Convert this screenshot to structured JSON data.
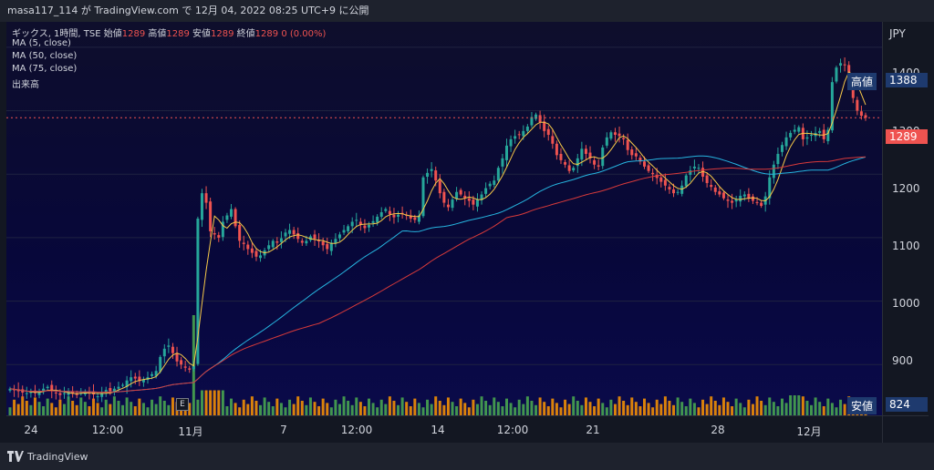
{
  "header": {
    "text": "masa117_114 が TradingView.com で 12月 04, 2022 08:25 UTC+9 に公開"
  },
  "legend": {
    "line1_prefix": "ギックス, 1時間, TSE",
    "o_label": "始値",
    "o_val": "1289",
    "h_label": "高値",
    "h_val": "1289",
    "l_label": "安値",
    "l_val": "1289",
    "c_label": "終値",
    "c_val": "1289",
    "chg": "0 (0.00%)",
    "ma5": "MA (5, close)",
    "ma50": "MA (50, close)",
    "ma75": "MA (75, close)",
    "vol": "出来高"
  },
  "axis": {
    "currency": "JPY",
    "yticks": [
      "1400",
      "1300",
      "1200",
      "1100",
      "1000",
      "900"
    ],
    "xticks": [
      "24",
      "12:00",
      "11月",
      "7",
      "12:00",
      "14",
      "12:00",
      "21",
      "28",
      "12月"
    ]
  },
  "tags": {
    "high_label": "高値",
    "high_val": "1388",
    "last_val": "1289",
    "low_label": "安値",
    "low_val": "824"
  },
  "footer": {
    "brand": "TradingView"
  },
  "marker": "E",
  "colors": {
    "up": "#26a69a",
    "down": "#ef5350",
    "ma5": "#f7c948",
    "ma50": "#26b5e0",
    "ma75": "#d83a3a",
    "bg": "#0b0b2e"
  },
  "chart_data": {
    "type": "line",
    "title": "",
    "ylim": [
      820,
      1440
    ],
    "closes": [
      862,
      860,
      858,
      856,
      855,
      857,
      855,
      858,
      862,
      865,
      858,
      855,
      852,
      855,
      858,
      854,
      852,
      855,
      858,
      856,
      853,
      850,
      855,
      860,
      858,
      862,
      865,
      868,
      875,
      880,
      878,
      874,
      876,
      880,
      885,
      890,
      912,
      925,
      930,
      918,
      905,
      900,
      895,
      892,
      898,
      1130,
      1170,
      1155,
      1110,
      1105,
      1100,
      1125,
      1135,
      1145,
      1118,
      1095,
      1090,
      1082,
      1076,
      1070,
      1072,
      1080,
      1088,
      1095,
      1092,
      1099,
      1108,
      1112,
      1105,
      1098,
      1092,
      1095,
      1102,
      1098,
      1094,
      1088,
      1082,
      1092,
      1098,
      1105,
      1112,
      1118,
      1125,
      1128,
      1120,
      1115,
      1120,
      1126,
      1133,
      1140,
      1145,
      1137,
      1132,
      1136,
      1138,
      1135,
      1130,
      1128,
      1135,
      1195,
      1202,
      1208,
      1190,
      1170,
      1155,
      1148,
      1160,
      1172,
      1168,
      1162,
      1158,
      1152,
      1160,
      1168,
      1178,
      1185,
      1190,
      1210,
      1225,
      1245,
      1255,
      1260,
      1262,
      1268,
      1275,
      1290,
      1294,
      1282,
      1268,
      1262,
      1248,
      1230,
      1222,
      1215,
      1205,
      1210,
      1225,
      1240,
      1232,
      1225,
      1215,
      1212,
      1242,
      1258,
      1266,
      1262,
      1260,
      1255,
      1238,
      1230,
      1228,
      1220,
      1212,
      1205,
      1200,
      1194,
      1188,
      1182,
      1176,
      1170,
      1172,
      1182,
      1198,
      1206,
      1212,
      1210,
      1196,
      1186,
      1180,
      1172,
      1168,
      1162,
      1158,
      1155,
      1160,
      1166,
      1168,
      1162,
      1158,
      1155,
      1150,
      1165,
      1195,
      1215,
      1232,
      1246,
      1258,
      1265,
      1270,
      1274,
      1255,
      1258,
      1262,
      1265,
      1268,
      1255,
      1270,
      1345,
      1368,
      1375,
      1372,
      1345,
      1320,
      1300,
      1292,
      1289
    ],
    "ma50_note": "",
    "volume_spike_index": 44,
    "volume_spike_value": 1.0
  }
}
